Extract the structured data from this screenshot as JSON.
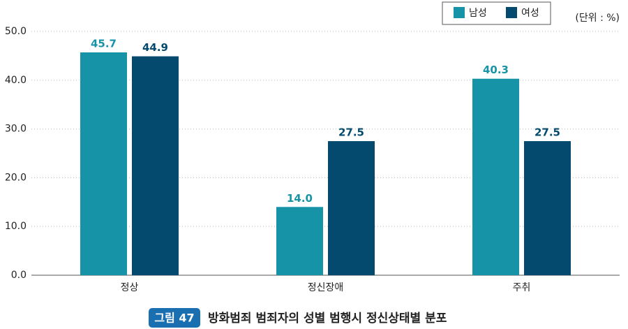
{
  "chart_data": {
    "type": "bar",
    "figure_label": "그림 47",
    "title": "방화범죄 범죄자의 성별 범행시 정신상태별 분포",
    "unit": "(단위 : %)",
    "categories": [
      "정상",
      "정신장애",
      "주취"
    ],
    "series": [
      {
        "name": "남성",
        "color": "#1793a8",
        "values": [
          45.7,
          14.0,
          40.3
        ],
        "value_labels": [
          "45.7",
          "14.0",
          "40.3"
        ]
      },
      {
        "name": "여성",
        "color": "#034a6e",
        "values": [
          44.9,
          27.5,
          27.5
        ],
        "value_labels": [
          "44.9",
          "27.5",
          "27.5"
        ]
      }
    ],
    "ylim": [
      0,
      50
    ],
    "yticks": [
      {
        "value": 0,
        "label": "0.0"
      },
      {
        "value": 10,
        "label": "10.0"
      },
      {
        "value": 20,
        "label": "20.0"
      },
      {
        "value": 30,
        "label": "30.0"
      },
      {
        "value": 40,
        "label": "40.0"
      },
      {
        "value": 50,
        "label": "50.0"
      }
    ],
    "grid": true
  }
}
